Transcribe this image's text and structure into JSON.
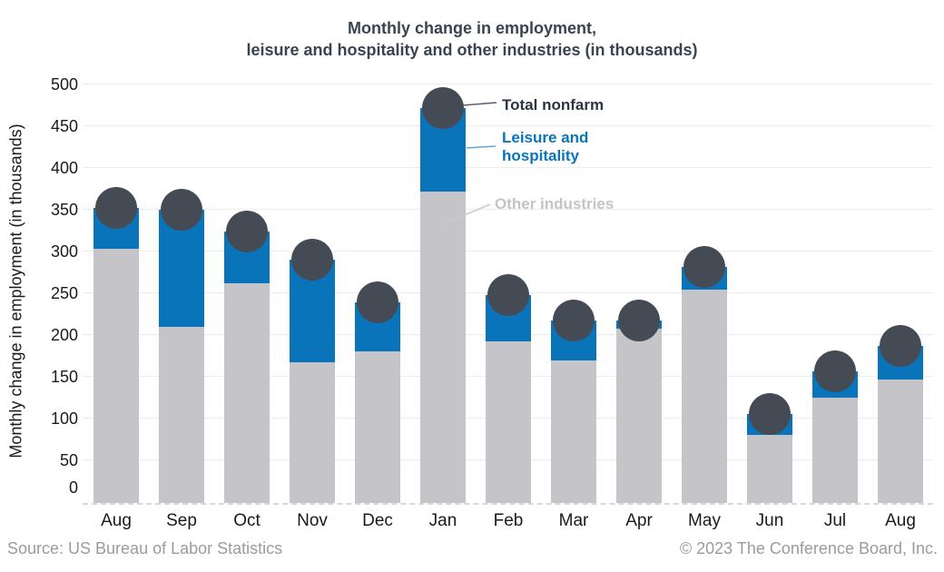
{
  "header": {
    "title_lines": [
      "Monthly change in employment,",
      "leisure and hospitality and other industries (in thousands)"
    ]
  },
  "chart_data": {
    "type": "bar",
    "stacked": true,
    "title": "Monthly change in employment, leisure and hospitality and other industries (in thousands)",
    "categories": [
      "Aug",
      "Sep",
      "Oct",
      "Nov",
      "Dec",
      "Jan",
      "Feb",
      "Mar",
      "Apr",
      "May",
      "Jun",
      "Jul",
      "Aug"
    ],
    "series": [
      {
        "name": "Other industries",
        "color": "#c4c4c9",
        "values": [
          303,
          210,
          262,
          167,
          180,
          372,
          192,
          170,
          208,
          254,
          80,
          125,
          147
        ]
      },
      {
        "name": "Leisure and hospitality",
        "color": "#0974b9",
        "values": [
          49,
          140,
          62,
          123,
          59,
          100,
          56,
          47,
          9,
          27,
          25,
          32,
          40
        ]
      }
    ],
    "markers": {
      "name": "Total nonfarm",
      "color": "#454b54",
      "values": [
        352,
        350,
        324,
        290,
        239,
        472,
        248,
        217,
        217,
        281,
        105,
        157,
        187
      ]
    },
    "xlabel": "",
    "ylabel": "Monthly change in employment (in thousands)",
    "ylim": [
      0,
      500
    ],
    "ytick_step": 50,
    "grid": true,
    "legend_position": "annotations inside plot, right of Jan bar",
    "annotations": [
      {
        "text": "Total nonfarm",
        "color": "#2b3442"
      },
      {
        "text": "Leisure and hospitality",
        "color": "#0974b9"
      },
      {
        "text": "Other industries",
        "color": "#c3c3c8"
      }
    ]
  },
  "footer": {
    "source": "Source: US Bureau of Labor Statistics",
    "copyright": "© 2023 The Conference Board, Inc."
  },
  "colors": {
    "grid": "#ececec",
    "baseline": "#d8d8d8",
    "title": "#3a4450",
    "axis_text": "#1a1a1a",
    "footer_text": "#9b9ba0"
  }
}
